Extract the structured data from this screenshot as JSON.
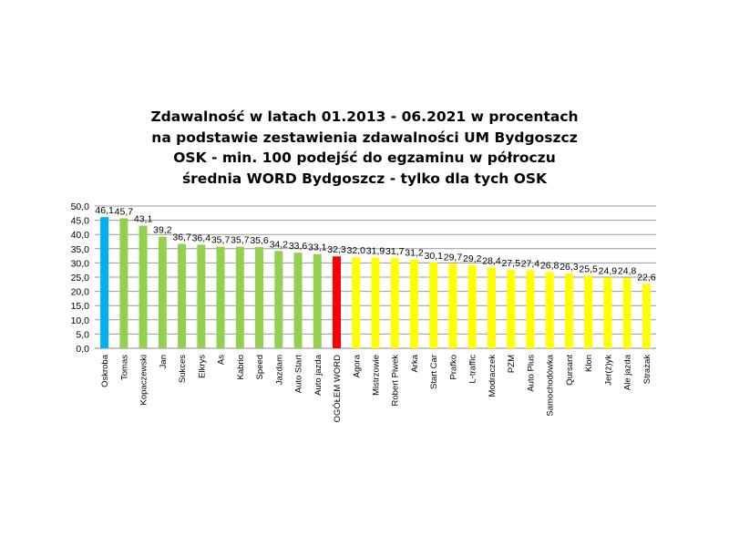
{
  "chart_data": {
    "type": "bar",
    "title": [
      "Zdawalność w latach 01.2013 - 06.2021 w procentach",
      "na podstawie zestawienia zdawalności UM Bydgoszcz",
      "OSK - min. 100 podejść do egzaminu w półroczu",
      "średnia WORD Bydgoszcz - tylko dla tych OSK"
    ],
    "categories": [
      "Oskroba",
      "Tomas",
      "Kopaczewski",
      "Jan",
      "Sukces",
      "Elkrys",
      "As",
      "Kabrio",
      "Speed",
      "Jazdam",
      "Auto Start",
      "Auto jazda",
      "OGÓŁEM WORD",
      "Agora",
      "Mistrzowie",
      "Robert Piwek",
      "Arka",
      "Start Car",
      "Prafko",
      "L-traffic",
      "Modraczek",
      "PZM",
      "Auto Plus",
      "Samochodówka",
      "Qursant",
      "Klon",
      "Jer(ż)yk",
      "Ale jazda",
      "Strażak"
    ],
    "values": [
      46.1,
      45.7,
      43.1,
      39.2,
      36.7,
      36.4,
      35.7,
      35.7,
      35.6,
      34.2,
      33.6,
      33.1,
      32.3,
      32.0,
      31.9,
      31.7,
      31.2,
      30.1,
      29.7,
      29.2,
      28.4,
      27.5,
      27.4,
      26.8,
      26.3,
      25.5,
      24.9,
      24.8,
      22.6
    ],
    "colors": [
      "#00b0f0",
      "#92d050",
      "#92d050",
      "#92d050",
      "#92d050",
      "#92d050",
      "#92d050",
      "#92d050",
      "#92d050",
      "#92d050",
      "#92d050",
      "#92d050",
      "#ff0000",
      "#ffff00",
      "#ffff00",
      "#ffff00",
      "#ffff00",
      "#ffff00",
      "#ffff00",
      "#ffff00",
      "#ffff00",
      "#ffff00",
      "#ffff00",
      "#ffff00",
      "#ffff00",
      "#ffff00",
      "#ffff00",
      "#ffff00",
      "#ffff00"
    ],
    "ylim": [
      0,
      50
    ],
    "yticks": [
      "0,0",
      "5,0",
      "10,0",
      "15,0",
      "20,0",
      "25,0",
      "30,0",
      "35,0",
      "40,0",
      "45,0",
      "50,0"
    ],
    "grid": true,
    "legend": "none"
  }
}
